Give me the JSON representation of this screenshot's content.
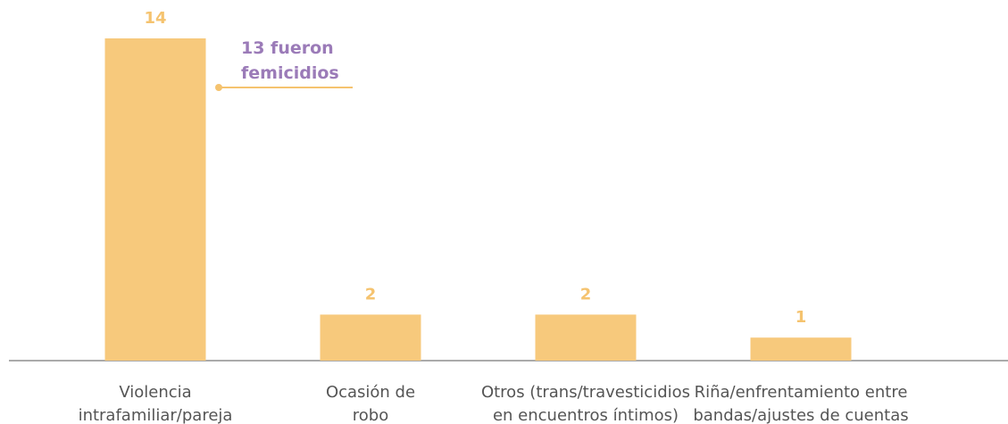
{
  "chart_data": {
    "type": "bar",
    "categories": [
      "Violencia intrafamiliar/pareja",
      "Ocasión de robo",
      "Otros (trans/travesticidios en encuentros íntimos)",
      "Riña/enfrentamiento entre bandas/ajustes de cuentas"
    ],
    "values": [
      14,
      2,
      2,
      1
    ],
    "color": "#f7c97c",
    "annotation": "13 fueron femicidios"
  }
}
